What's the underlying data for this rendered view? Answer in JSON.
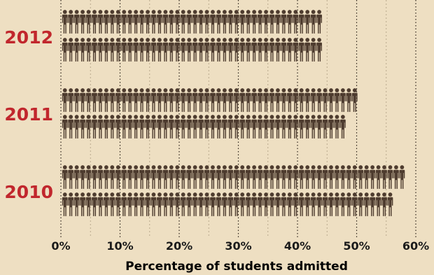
{
  "chart_data": {
    "type": "bar",
    "orientation": "horizontal",
    "mark_style": "stick-figure pictogram rows",
    "title": "",
    "xlabel": "Percentage of students admitted",
    "ylabel": "",
    "categories": [
      "2012",
      "2011",
      "2010"
    ],
    "series": [
      {
        "values": [
          44.8,
          50.9,
          58.8
        ]
      },
      {
        "values": [
          44.8,
          49.1,
          56.9
        ]
      }
    ],
    "xlim": [
      0,
      60
    ],
    "xticks": [
      "0%",
      "10%",
      "20%",
      "30%",
      "40%",
      "50%",
      "60%"
    ],
    "grid": "vertical dotted lines",
    "colors": {
      "background": "#eedfc2",
      "figures": "#4e3c2f",
      "year_labels": "#c1272d",
      "text": "#1a1a1a",
      "gridlines": "#7a6a58"
    }
  }
}
